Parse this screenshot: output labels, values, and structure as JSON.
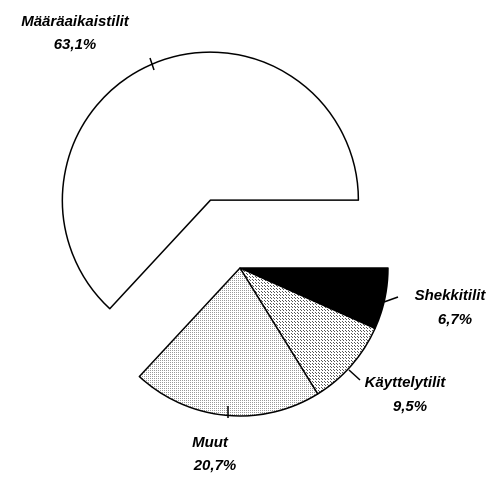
{
  "chart_data": {
    "type": "pie",
    "categories": [
      "Määräaikaistilit",
      "Shekkitilit",
      "Käyttelytilit",
      "Muut"
    ],
    "values": [
      63.1,
      6.7,
      9.5,
      20.7
    ],
    "value_labels": [
      "63,1%",
      "6,7%",
      "9,5%",
      "20,7%"
    ],
    "colors": [
      "#ffffff",
      "#000000",
      "#555555",
      "#999999"
    ]
  }
}
